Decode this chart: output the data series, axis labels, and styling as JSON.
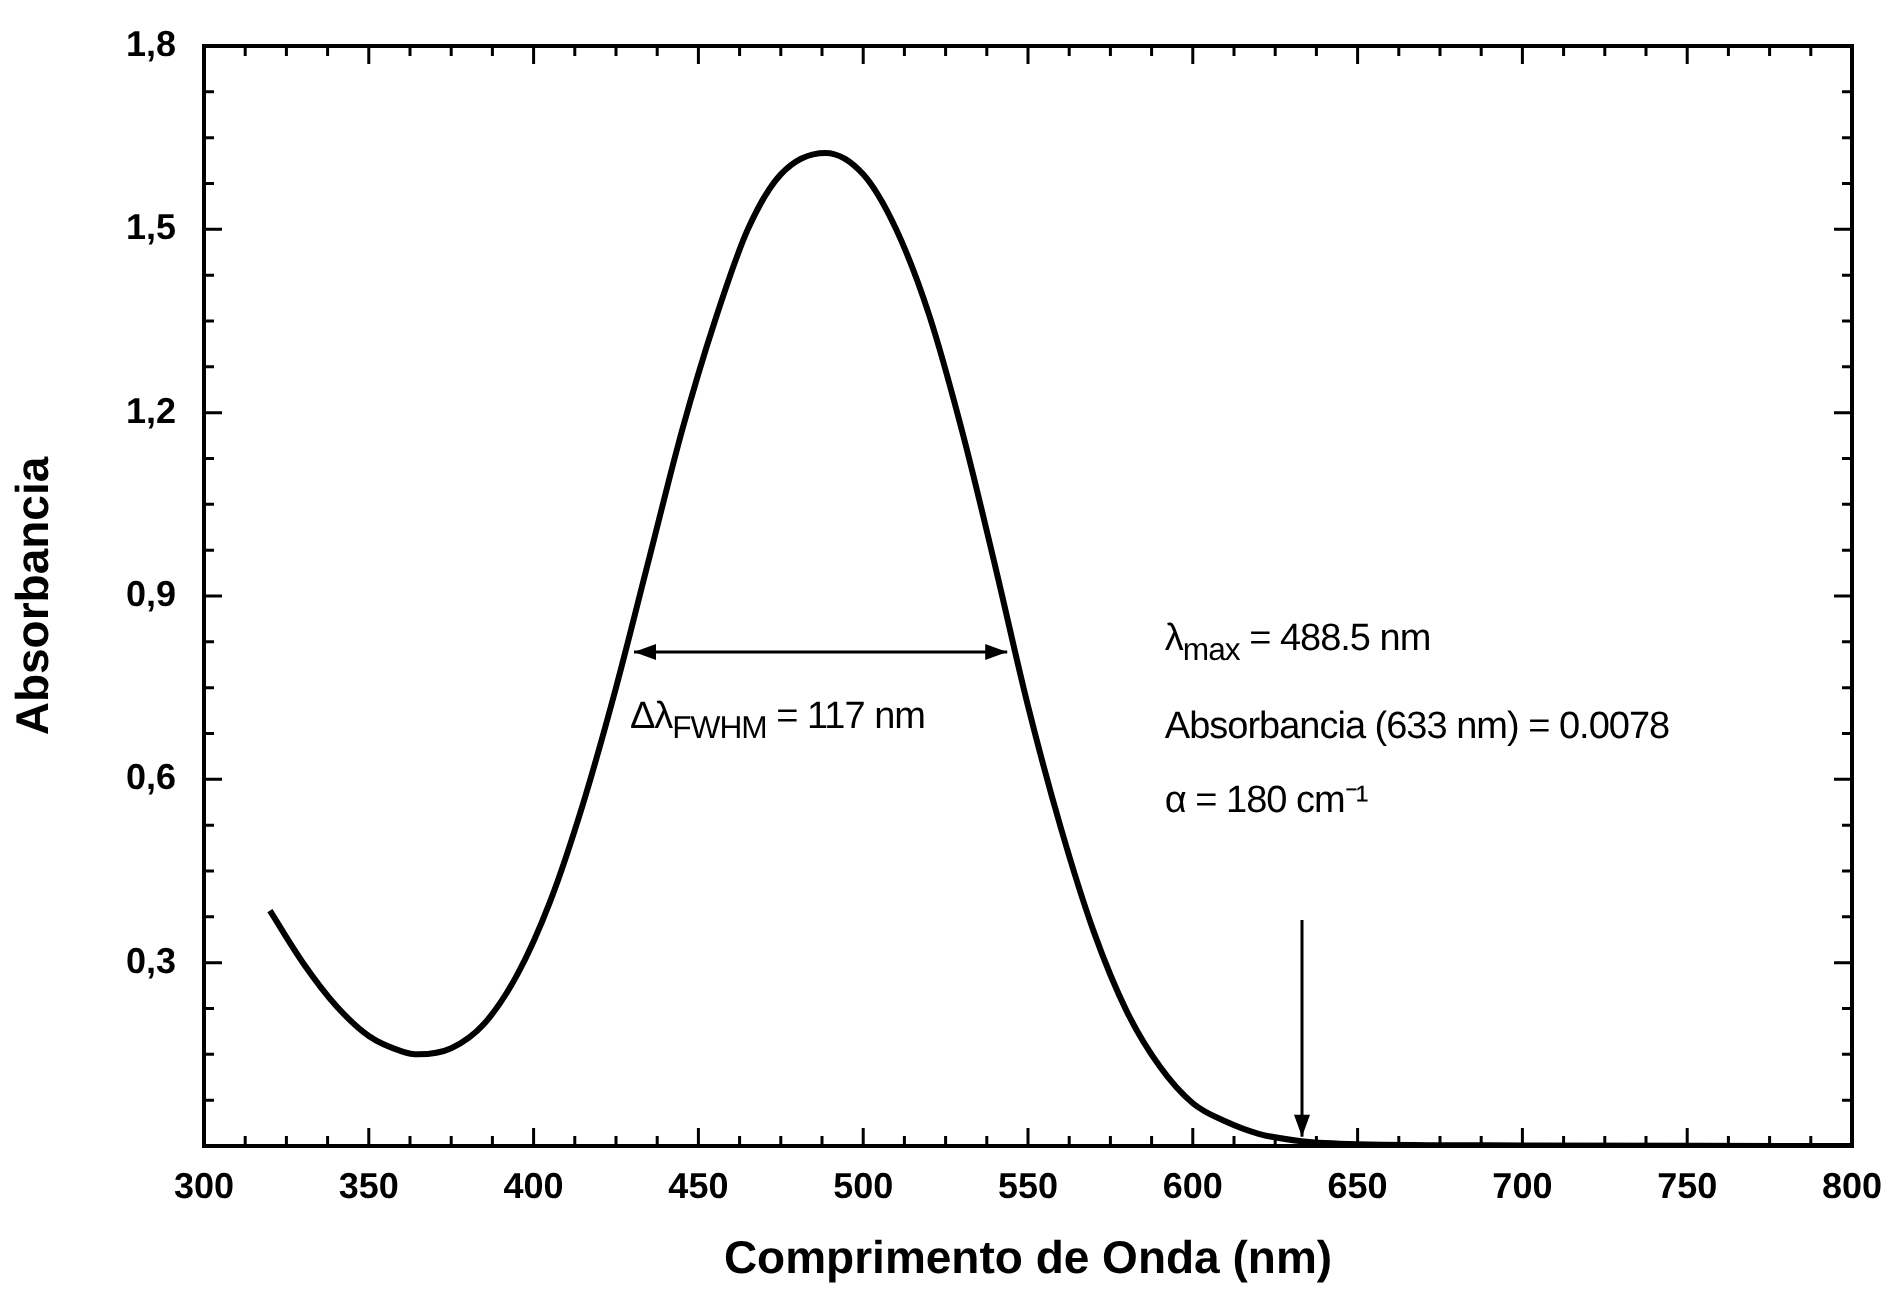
{
  "chart_data": {
    "type": "line",
    "xlabel": "Comprimento de Onda (nm)",
    "ylabel": "Absorbancia",
    "color": "#000000",
    "marker": "none",
    "x": [
      320,
      330,
      340,
      350,
      360,
      365,
      375,
      385,
      395,
      405,
      415,
      425,
      435,
      445,
      455,
      465,
      475,
      488.5,
      500,
      510,
      520,
      530,
      540,
      550,
      560,
      570,
      580,
      590,
      600,
      610,
      620,
      633,
      650,
      700,
      800
    ],
    "values": [
      0.385,
      0.3,
      0.23,
      0.18,
      0.155,
      0.15,
      0.16,
      0.2,
      0.28,
      0.4,
      0.56,
      0.75,
      0.96,
      1.17,
      1.35,
      1.5,
      1.59,
      1.625,
      1.59,
      1.5,
      1.36,
      1.17,
      0.95,
      0.72,
      0.52,
      0.35,
      0.22,
      0.13,
      0.07,
      0.04,
      0.02,
      0.0078,
      0.003,
      0.001,
      0
    ],
    "xlim": [
      300,
      800
    ],
    "xticks": [
      300,
      350,
      400,
      450,
      500,
      550,
      600,
      650,
      700,
      750,
      800
    ],
    "ylim": [
      0,
      1.8
    ],
    "yticks": [
      {
        "value": 0.3,
        "label": "0,3"
      },
      {
        "value": 0.6,
        "label": "0,6"
      },
      {
        "value": 0.9,
        "label": "0,9"
      },
      {
        "value": 1.2,
        "label": "1,2"
      },
      {
        "value": 1.5,
        "label": "1,5"
      },
      {
        "value": 1.8,
        "label": "1,8"
      }
    ],
    "ref_lines": [
      {
        "axis": "x",
        "value": 633
      }
    ],
    "annotations": [
      {
        "text": "Δλ$_{FWHM}$ = 117 nm",
        "x": 428,
        "y": 0.81
      },
      "λ$_{max}$ = 488.5 nm",
      "Absorbancia (633 nm) = 0.0078",
      "α = 180 cm⁻¹"
    ]
  }
}
